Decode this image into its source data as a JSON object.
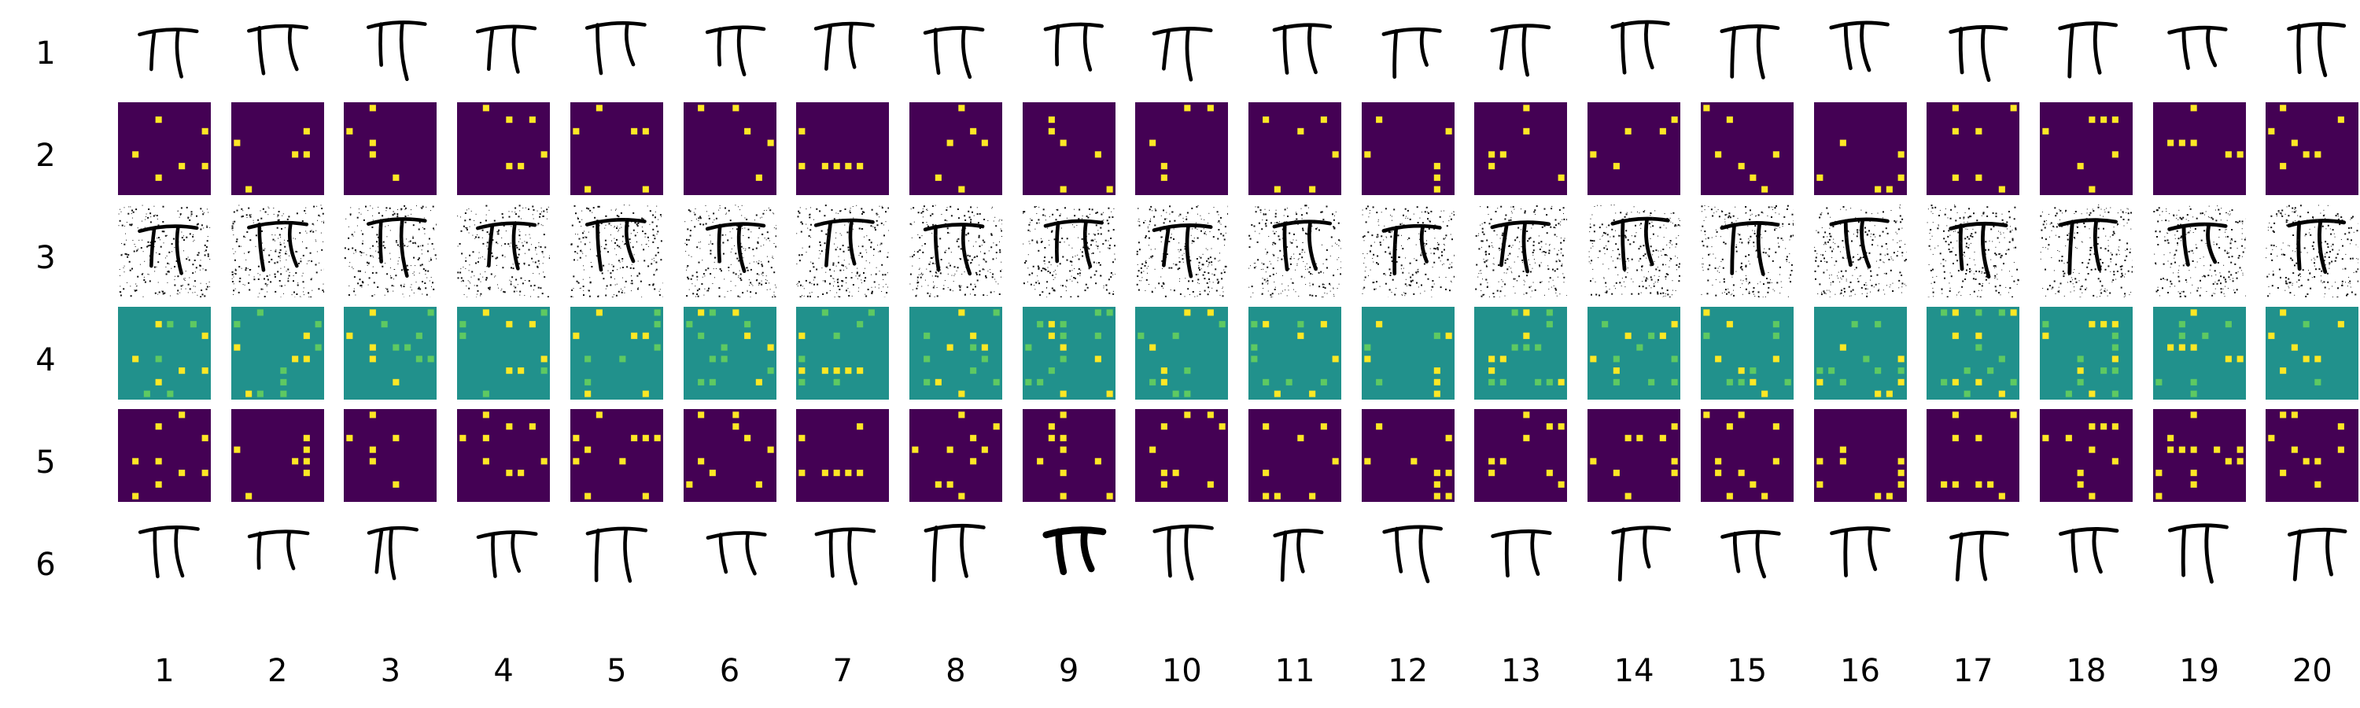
{
  "row_labels": [
    "1",
    "2",
    "3",
    "4",
    "5",
    "6"
  ],
  "column_labels": [
    "1",
    "2",
    "3",
    "4",
    "5",
    "6",
    "7",
    "8",
    "9",
    "10",
    "11",
    "12",
    "13",
    "14",
    "15",
    "16",
    "17",
    "18",
    "19",
    "20"
  ],
  "colors": {
    "background": "#ffffff",
    "ink": "#000000",
    "heatmap_dark": "#440154",
    "heatmap_bright": "#fde725",
    "heatmap_mid": "#21918c",
    "heatmap_mid_high": "#5ec962"
  },
  "rows": [
    {
      "label": "1",
      "content": "handwritten pi glyph (original)"
    },
    {
      "label": "2",
      "content": "8x8 sparse heatmap"
    },
    {
      "label": "3",
      "content": "pi glyph with salt-and-pepper noise"
    },
    {
      "label": "4",
      "content": "8x8 heatmap, teal background"
    },
    {
      "label": "5",
      "content": "8x8 sparse heatmap"
    },
    {
      "label": "6",
      "content": "handwritten pi glyph (reconstruction)"
    }
  ]
}
